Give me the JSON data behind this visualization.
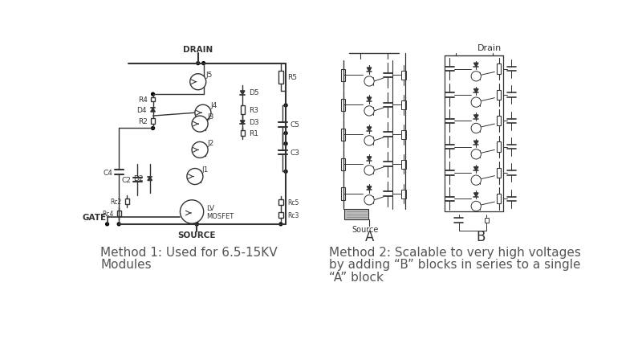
{
  "bg_color": "#ffffff",
  "fig_width": 8.0,
  "fig_height": 4.39,
  "dpi": 100,
  "caption_left_line1": "Method 1: Used for 6.5-15KV",
  "caption_left_line2": "Modules",
  "caption_right_line1": "Method 2: Scalable to very high voltages",
  "caption_right_line2": "by adding “B” blocks in series to a single",
  "caption_right_line3": "“A” block",
  "label_drain_left": "DRAIN",
  "label_source_left": "SOURCE",
  "label_gate_left": "GATE",
  "label_drain_right": "Drain",
  "label_source_right": "Source",
  "label_A": "A",
  "label_B": "B",
  "text_color": "#333333",
  "line_color": "#333333"
}
